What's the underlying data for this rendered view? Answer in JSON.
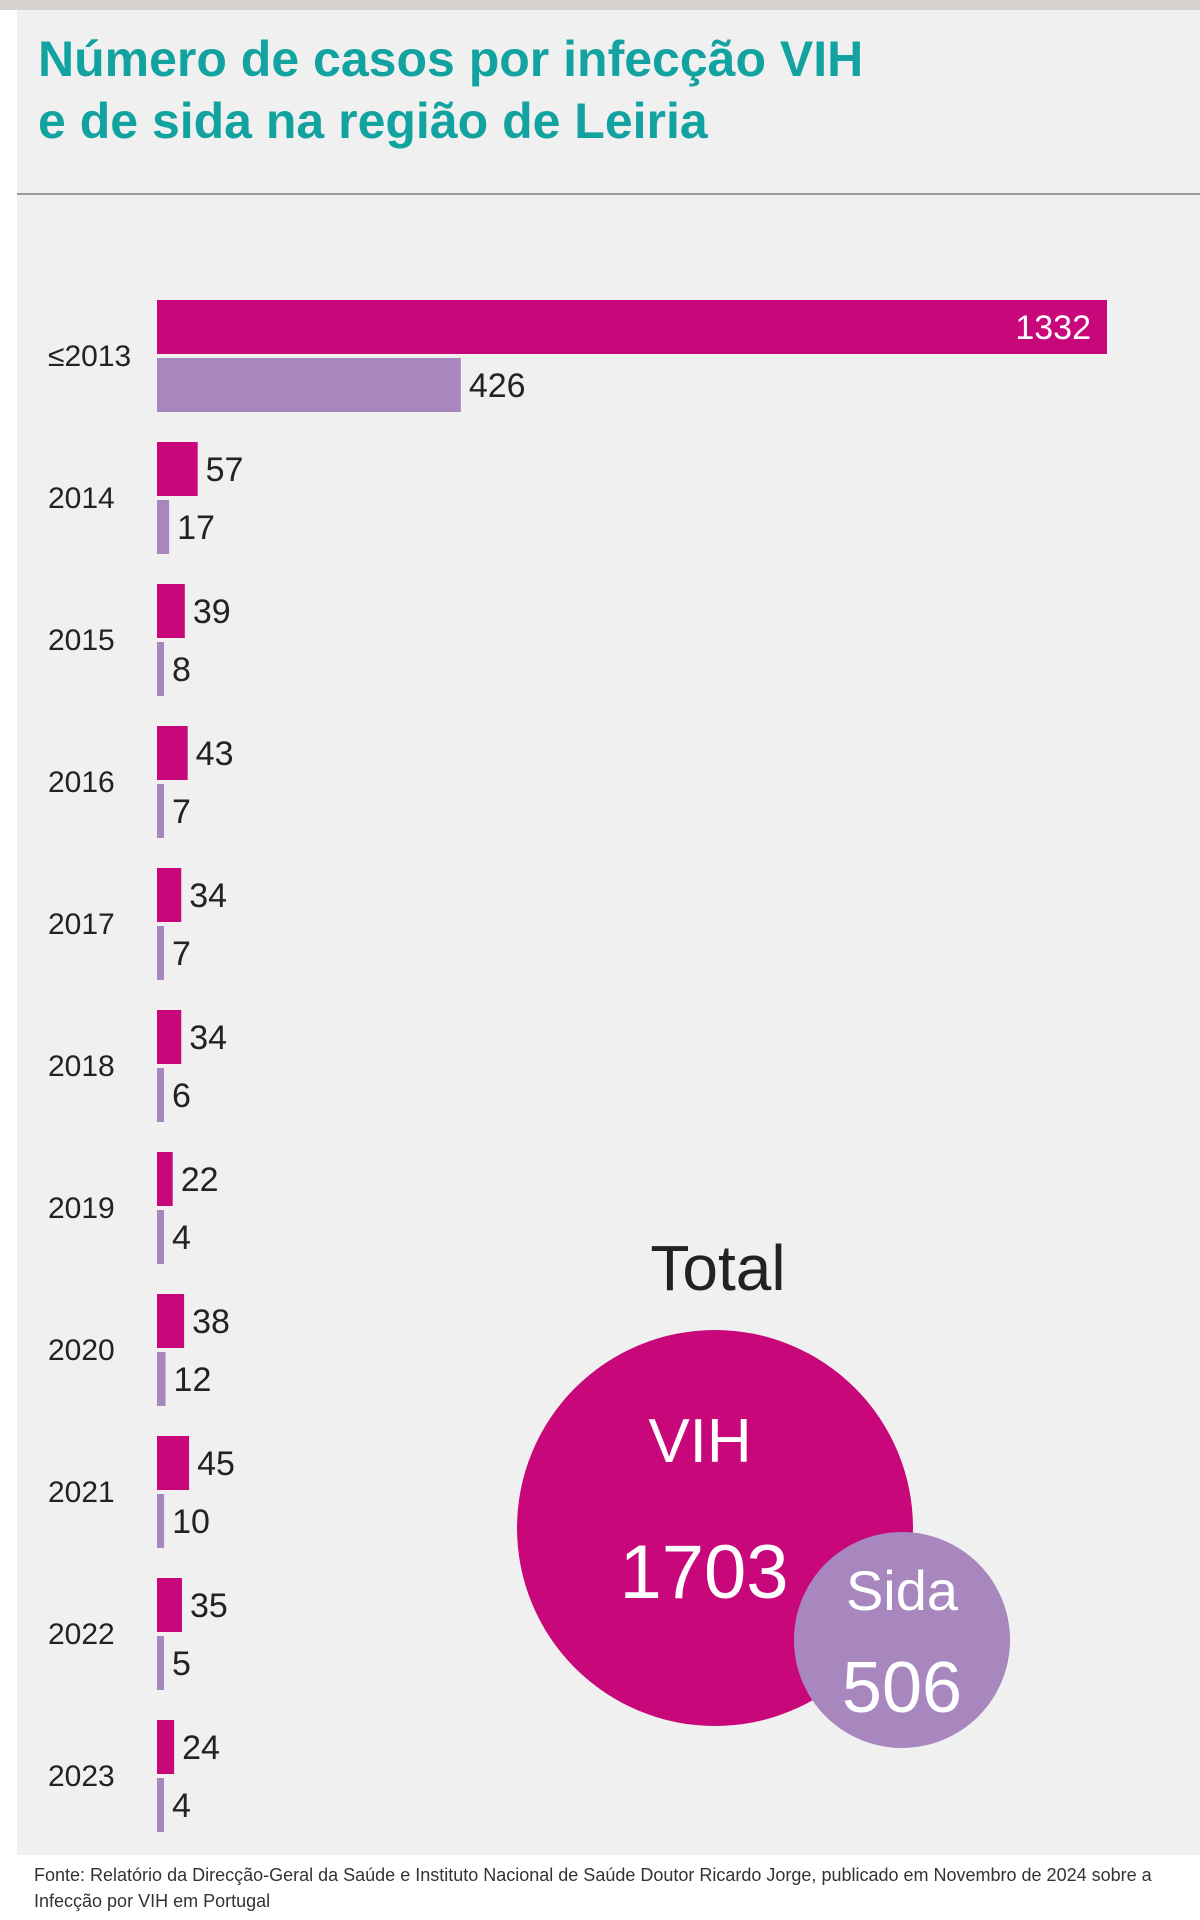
{
  "title_line1": "Número de casos por infecção VIH",
  "title_line2": "e de sida na região de Leiria",
  "footer": "Fonte: Relatório da Direcção-Geral da Saúde e Instituto Nacional de Saúde Doutor Ricardo Jorge, publicado em Novembro de 2024 sobre a Infecção por VIH em Portugal",
  "total": {
    "heading": "Total",
    "vih_label": "VIH",
    "vih_value": "1703",
    "sida_label": "Sida",
    "sida_value": "506"
  },
  "colors": {
    "vih": "#c8077b",
    "sida": "#a787be",
    "title": "#12a3a0"
  },
  "chart_data": {
    "type": "bar",
    "orientation": "horizontal",
    "title": "Número de casos por infecção VIH e de sida na região de Leiria",
    "categories": [
      "≤2013",
      "2014",
      "2015",
      "2016",
      "2017",
      "2018",
      "2019",
      "2020",
      "2021",
      "2022",
      "2023"
    ],
    "series": [
      {
        "name": "VIH",
        "values": [
          1332,
          57,
          39,
          43,
          34,
          34,
          22,
          38,
          45,
          35,
          24
        ]
      },
      {
        "name": "Sida",
        "values": [
          426,
          17,
          8,
          7,
          7,
          6,
          4,
          12,
          10,
          5,
          4
        ]
      }
    ],
    "xlim": [
      0,
      1332
    ],
    "grid": false,
    "legend": "none"
  }
}
